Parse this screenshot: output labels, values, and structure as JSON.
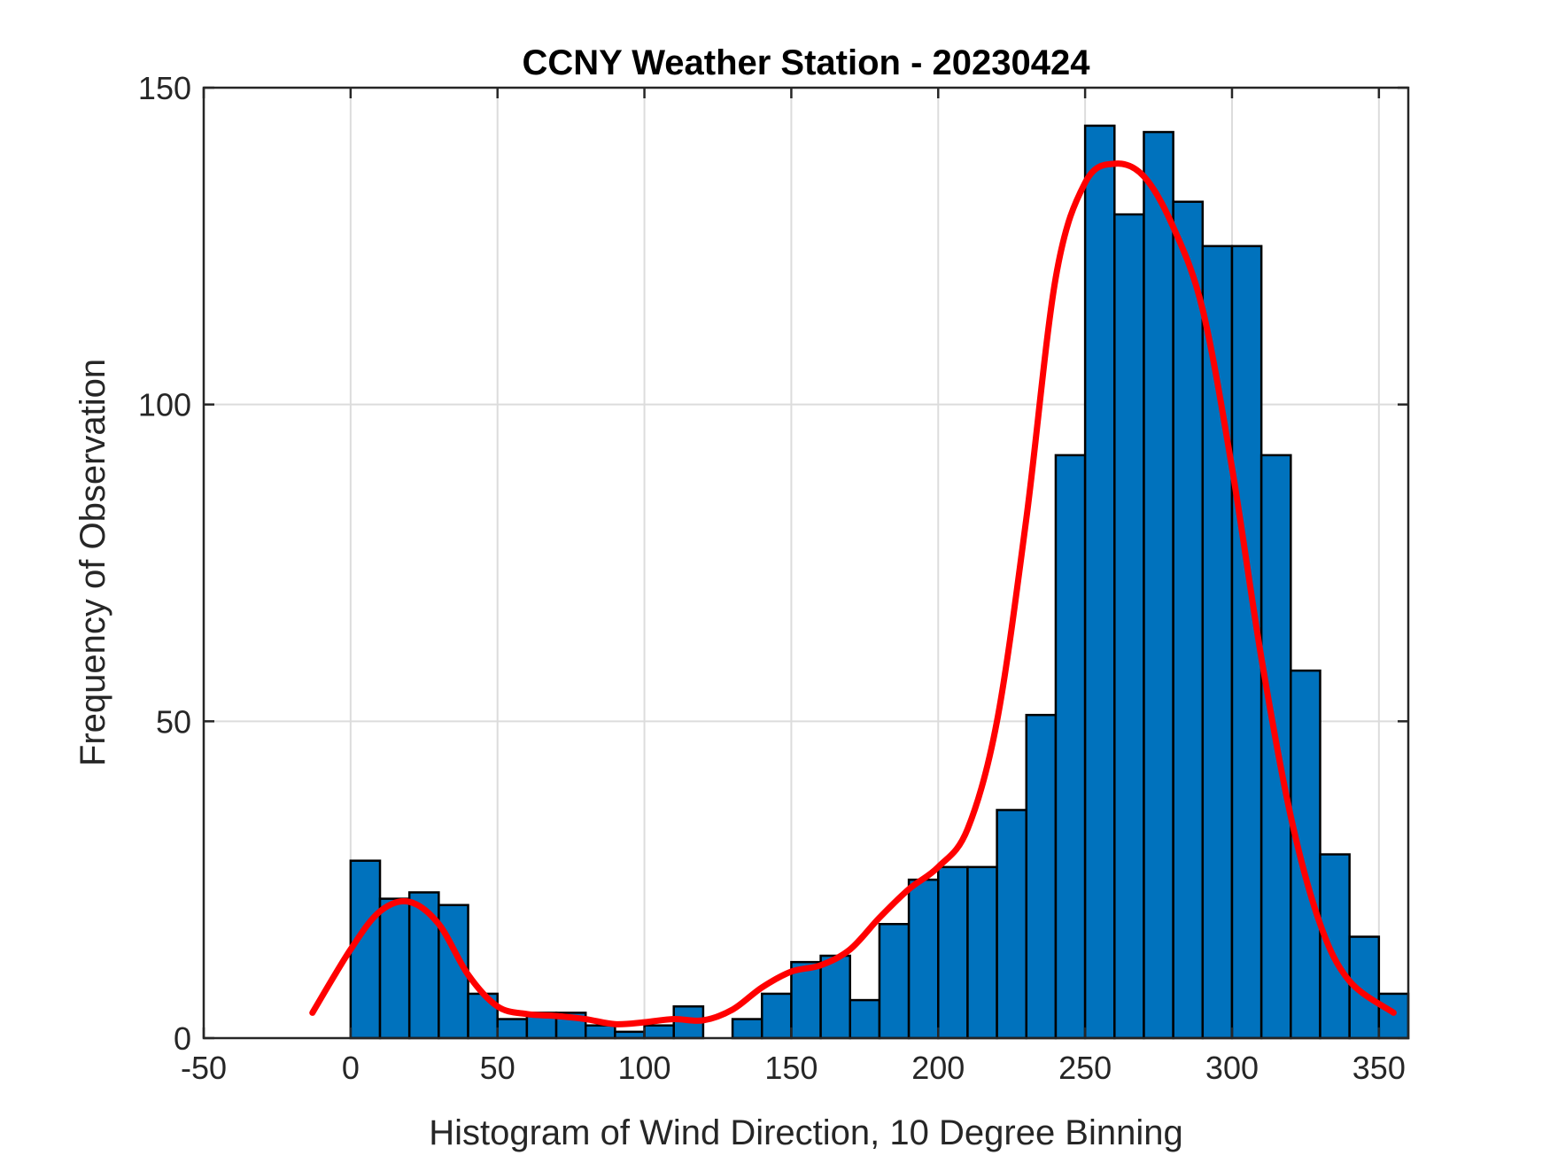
{
  "chart_data": {
    "type": "bar",
    "title": "CCNY Weather Station - 20230424",
    "xlabel": "Histogram of Wind Direction, 10 Degree Binning",
    "ylabel": "Frequency of Observation",
    "xlim": [
      -50,
      360
    ],
    "ylim": [
      0,
      150
    ],
    "xticks": [
      -50,
      0,
      50,
      100,
      150,
      200,
      250,
      300,
      350
    ],
    "yticks": [
      0,
      50,
      100,
      150
    ],
    "grid": true,
    "bin_width": 10,
    "bin_edges": [
      0,
      10,
      20,
      30,
      40,
      50,
      60,
      70,
      80,
      90,
      100,
      110,
      120,
      130,
      140,
      150,
      160,
      170,
      180,
      190,
      200,
      210,
      220,
      230,
      240,
      250,
      260,
      270,
      280,
      290,
      300,
      310,
      320,
      330,
      340,
      350,
      360
    ],
    "values": [
      28,
      22,
      23,
      21,
      7,
      3,
      4,
      4,
      2,
      1,
      2,
      5,
      0,
      3,
      7,
      12,
      13,
      6,
      18,
      25,
      27,
      27,
      36,
      51,
      92,
      144,
      130,
      143,
      132,
      125,
      125,
      92,
      58,
      29,
      16,
      7
    ],
    "series": [
      {
        "name": "smoothed density fit",
        "type": "line",
        "color": "#ff0000",
        "x": [
          -13,
          0,
          10,
          20,
          30,
          40,
          50,
          60,
          70,
          80,
          90,
          100,
          110,
          120,
          130,
          140,
          150,
          160,
          170,
          180,
          190,
          200,
          210,
          220,
          230,
          240,
          250,
          260,
          270,
          280,
          290,
          300,
          310,
          320,
          330,
          340,
          355
        ],
        "y": [
          4,
          14,
          20,
          21.5,
          18,
          10,
          5,
          3.8,
          3.5,
          3,
          2.2,
          2.5,
          3,
          2.8,
          4.5,
          8,
          10.5,
          11.5,
          14,
          19,
          23.5,
          27,
          33,
          50,
          82,
          120,
          135,
          138,
          136,
          128,
          115,
          90,
          60,
          35,
          18,
          9,
          4
        ]
      }
    ],
    "colors": {
      "bars": "#0072bd",
      "bar_edge": "#000000",
      "curve": "#ff0000"
    }
  }
}
